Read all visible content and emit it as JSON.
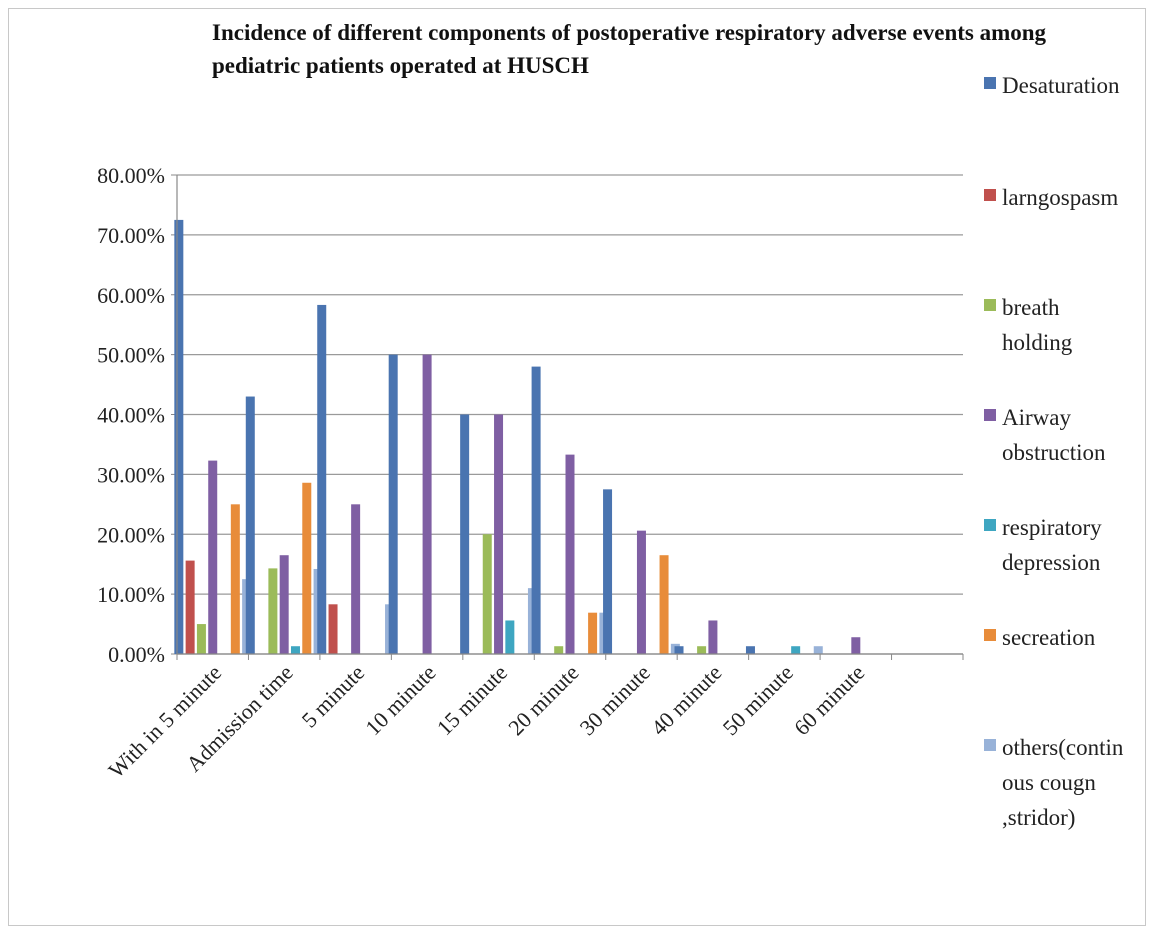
{
  "chart_data": {
    "type": "bar",
    "title": "Incidence of different components of postoperative respiratory adverse events  among pediatric patients operated at HUSCH",
    "xlabel": "",
    "ylabel": "",
    "ylim": [
      0,
      80
    ],
    "y_ticks": [
      "0.00%",
      "10.00%",
      "20.00%",
      "30.00%",
      "40.00%",
      "50.00%",
      "60.00%",
      "70.00%",
      "80.00%"
    ],
    "grid": true,
    "legend_position": "right",
    "categories": [
      "With in 5 minute",
      "Admission time",
      "5 minute",
      "10 minute",
      "15 minute",
      "20 minute",
      "30 minute",
      "40 minute",
      "50 minute",
      "60 minute"
    ],
    "series": [
      {
        "name": "Desaturation",
        "color": "#4a74b0",
        "values": [
          72.5,
          43.0,
          58.3,
          50.0,
          40.0,
          48.0,
          27.5,
          1.3,
          1.3,
          0
        ]
      },
      {
        "name": "larngospasm",
        "color": "#c0504d",
        "values": [
          15.6,
          0,
          8.3,
          0,
          0,
          0,
          0,
          0,
          0,
          0
        ]
      },
      {
        "name": "breath holding",
        "color": "#9bbb59",
        "values": [
          5.0,
          14.3,
          0,
          0,
          20.0,
          1.3,
          0,
          1.3,
          0,
          0
        ]
      },
      {
        "name": "Airway obstruction",
        "color": "#7f5fa3",
        "values": [
          32.3,
          16.5,
          25.0,
          50.0,
          40.0,
          33.3,
          20.6,
          5.6,
          0,
          2.8
        ]
      },
      {
        "name": "respiratory depression",
        "color": "#3ea6c1",
        "values": [
          0,
          1.3,
          0,
          0,
          5.6,
          0,
          0,
          0,
          1.3,
          0
        ]
      },
      {
        "name": "secreation",
        "color": "#e88c3a",
        "values": [
          25.0,
          28.6,
          0,
          0,
          0,
          6.9,
          16.5,
          0,
          0,
          0
        ]
      },
      {
        "name": "others(contin ous cougn ,stridor)",
        "color": "#98b2d8",
        "values": [
          12.5,
          14.2,
          8.3,
          0,
          11.0,
          6.9,
          1.7,
          0,
          1.3,
          0
        ]
      }
    ]
  }
}
